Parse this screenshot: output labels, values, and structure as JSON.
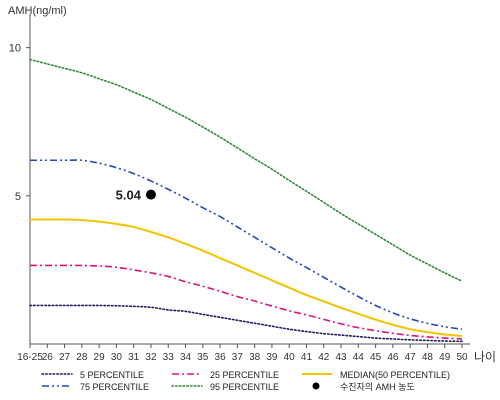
{
  "chart_data": {
    "type": "line",
    "title": "",
    "ylabel": "AMH(ng/ml)",
    "xlabel": "나이",
    "x_categories": [
      "16-25",
      "26",
      "27",
      "28",
      "29",
      "30",
      "31",
      "32",
      "33",
      "34",
      "35",
      "36",
      "37",
      "38",
      "39",
      "40",
      "41",
      "42",
      "43",
      "44",
      "45",
      "46",
      "47",
      "48",
      "49",
      "50"
    ],
    "ylim": [
      0,
      11
    ],
    "y_ticks": [
      5,
      10
    ],
    "grid": false,
    "legend_position": "bottom",
    "series": [
      {
        "name": "5 PERCENTILE",
        "color": "#1a1a66",
        "style": "dotted",
        "values": [
          1.3,
          1.3,
          1.3,
          1.3,
          1.3,
          1.29,
          1.27,
          1.24,
          1.15,
          1.1,
          1.0,
          0.9,
          0.8,
          0.7,
          0.6,
          0.5,
          0.42,
          0.35,
          0.3,
          0.25,
          0.2,
          0.17,
          0.14,
          0.12,
          0.1,
          0.09
        ]
      },
      {
        "name": "25 PERCENTILE",
        "color": "#e0147e",
        "style": "dashdot",
        "values": [
          2.65,
          2.65,
          2.65,
          2.65,
          2.63,
          2.59,
          2.5,
          2.4,
          2.28,
          2.1,
          1.95,
          1.78,
          1.6,
          1.45,
          1.28,
          1.12,
          0.98,
          0.83,
          0.68,
          0.55,
          0.45,
          0.36,
          0.29,
          0.24,
          0.2,
          0.17
        ]
      },
      {
        "name": "MEDIAN(50 PERCENTILE)",
        "color": "#f2c400",
        "style": "solid",
        "values": [
          4.2,
          4.2,
          4.2,
          4.18,
          4.13,
          4.05,
          3.95,
          3.78,
          3.6,
          3.38,
          3.15,
          2.9,
          2.65,
          2.4,
          2.15,
          1.9,
          1.65,
          1.44,
          1.22,
          1.02,
          0.82,
          0.65,
          0.5,
          0.4,
          0.32,
          0.27
        ]
      },
      {
        "name": "75 PERCENTILE",
        "color": "#2a44c0",
        "style": "dashdotdot",
        "values": [
          6.2,
          6.2,
          6.2,
          6.2,
          6.1,
          5.95,
          5.75,
          5.5,
          5.22,
          4.92,
          4.6,
          4.3,
          3.95,
          3.6,
          3.25,
          2.9,
          2.58,
          2.25,
          1.92,
          1.6,
          1.3,
          1.05,
          0.85,
          0.7,
          0.58,
          0.5
        ]
      },
      {
        "name": "95 PERCENTILE",
        "color": "#2e8b3a",
        "style": "dotted",
        "values": [
          9.6,
          9.45,
          9.3,
          9.15,
          8.95,
          8.75,
          8.5,
          8.25,
          7.95,
          7.65,
          7.32,
          6.98,
          6.62,
          6.25,
          5.9,
          5.52,
          5.15,
          4.78,
          4.4,
          4.05,
          3.7,
          3.35,
          3.0,
          2.7,
          2.4,
          2.12
        ]
      }
    ],
    "patient": {
      "name": "수진자의 AMH 농도",
      "x": "32",
      "value": 5.04,
      "label": "5.04",
      "color": "#000000"
    }
  },
  "legend": {
    "items": [
      {
        "name": "5 PERCENTILE",
        "color": "#1a1a66",
        "style": "dotted"
      },
      {
        "name": "25 PERCENTILE",
        "color": "#e0147e",
        "style": "dashdot"
      },
      {
        "name": "MEDIAN(50 PERCENTILE)",
        "color": "#f2c400",
        "style": "solid"
      },
      {
        "name": "75 PERCENTILE",
        "color": "#2a44c0",
        "style": "dashdotdot"
      },
      {
        "name": "95 PERCENTILE",
        "color": "#2e8b3a",
        "style": "dotted"
      },
      {
        "name": "수진자의 AMH 농도",
        "color": "#000000",
        "style": "dot"
      }
    ]
  }
}
